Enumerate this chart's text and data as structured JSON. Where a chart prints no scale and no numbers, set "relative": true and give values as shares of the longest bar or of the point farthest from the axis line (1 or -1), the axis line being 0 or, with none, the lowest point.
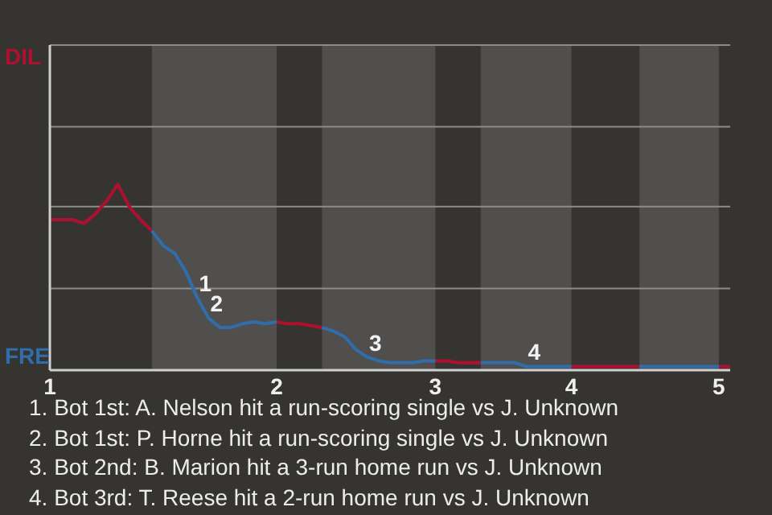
{
  "chart_data": {
    "type": "line",
    "relative": true,
    "categories": [
      "1",
      null,
      null,
      null,
      null,
      null,
      null,
      null,
      null,
      null,
      null,
      null,
      null,
      null,
      null,
      null,
      null,
      null,
      null,
      null,
      "2",
      null,
      null,
      null,
      null,
      null,
      null,
      null,
      null,
      null,
      null,
      null,
      null,
      null,
      "3",
      null,
      null,
      null,
      null,
      null,
      null,
      null,
      null,
      null,
      null,
      null,
      "4",
      null,
      null,
      null,
      null,
      null,
      null,
      null,
      null,
      null,
      null,
      null,
      null,
      "5",
      null
    ],
    "series": [
      {
        "name": "DIL",
        "color": "#b01030",
        "values": [
          0.81,
          0.81,
          0.81,
          0.79,
          0.84,
          0.91,
          1,
          0.88,
          0.81,
          0.75,
          null,
          null,
          null,
          null,
          null,
          null,
          null,
          null,
          null,
          null,
          0.26,
          0.25,
          0.25,
          0.24,
          0.23,
          null,
          null,
          null,
          null,
          null,
          null,
          null,
          null,
          null,
          0.05,
          0.05,
          0.04,
          0.04,
          0.04,
          null,
          null,
          null,
          null,
          null,
          null,
          null,
          0.02,
          0.02,
          0.02,
          0.02,
          0.02,
          0.02,
          0.02,
          null,
          null,
          null,
          null,
          null,
          null,
          0.02,
          0.02
        ]
      },
      {
        "name": "FRE",
        "color": "#2f6eaa",
        "values": [
          null,
          null,
          null,
          null,
          null,
          null,
          null,
          null,
          null,
          0.75,
          0.67,
          0.63,
          0.53,
          0.39,
          0.28,
          0.23,
          0.23,
          0.25,
          0.26,
          0.25,
          0.26,
          null,
          null,
          null,
          0.23,
          0.21,
          0.18,
          0.11,
          0.07,
          0.05,
          0.04,
          0.04,
          0.04,
          0.05,
          0.05,
          null,
          null,
          null,
          0.04,
          0.04,
          0.04,
          0.04,
          0.02,
          0.02,
          0.02,
          0.02,
          0.02,
          null,
          null,
          null,
          null,
          null,
          0.02,
          0.02,
          0.02,
          0.02,
          0.02,
          0.02,
          0.02,
          0.02,
          null
        ]
      }
    ],
    "ref_lines": [
      {
        "axis": "y",
        "value": 0.44,
        "color": "#8c8c8a"
      },
      {
        "axis": "y",
        "value": 0.88,
        "color": "#8c8c8a"
      },
      {
        "axis": "y",
        "value": 1.31,
        "color": "#8c8c8a"
      },
      {
        "axis": "y",
        "value": 1.75,
        "color": "#8c8c8a"
      }
    ],
    "marker": "none",
    "line_style": "solid",
    "annotations": [
      {
        "text": "1",
        "y": 0.39
      },
      {
        "text": "2",
        "y": 0.28
      },
      {
        "text": "3",
        "y": 0.07
      },
      {
        "text": "4",
        "y": 0.02
      },
      "1. Bot 1st: A. Nelson hit a run-scoring single vs J. Unknown",
      "2. Bot 1st: P. Horne hit a run-scoring single vs J. Unknown",
      "3. Bot 2nd: B. Marion hit a 3-run home run vs J. Unknown",
      "4. Bot 3rd: T. Reese hit a 2-run home run vs J. Unknown"
    ]
  }
}
